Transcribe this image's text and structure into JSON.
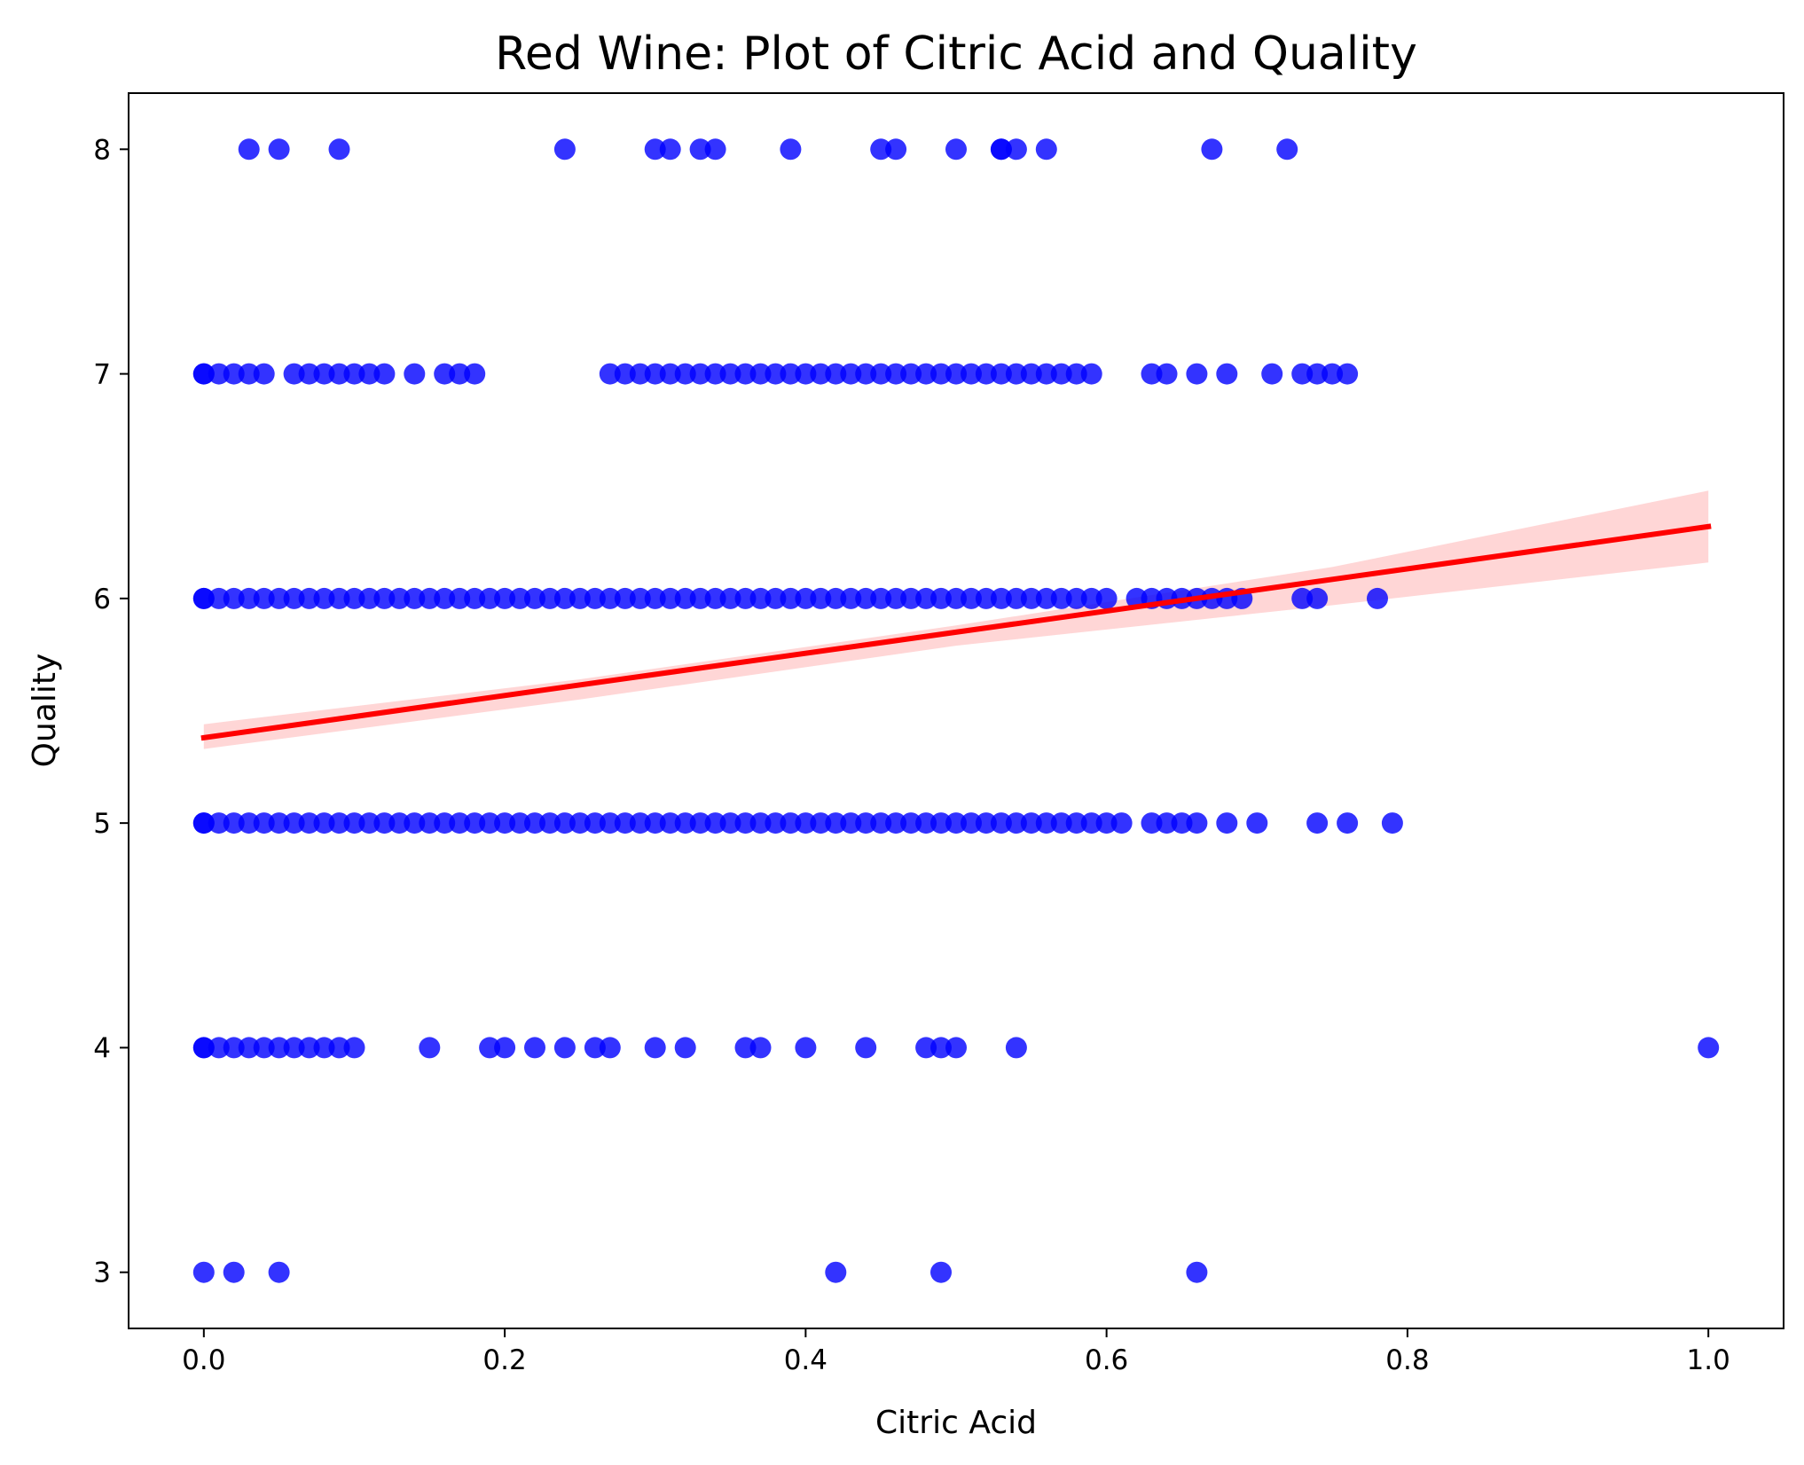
{
  "chart_data": {
    "type": "scatter",
    "title": "Red Wine: Plot of Citric Acid and Quality",
    "xlabel": "Citric Acid",
    "ylabel": "Quality",
    "xlim": [
      -0.05,
      1.05
    ],
    "ylim": [
      2.75,
      8.25
    ],
    "xticks": [
      "0.0",
      "0.2",
      "0.4",
      "0.6",
      "0.8",
      "1.0"
    ],
    "yticks": [
      "3",
      "4",
      "5",
      "6",
      "7",
      "8"
    ],
    "grid": false,
    "colors": {
      "points": "#0000ff",
      "regression_line": "#ff0000",
      "confidence_band": "#ffc8c8"
    },
    "regression": {
      "x": [
        0.0,
        1.0
      ],
      "y": [
        5.38,
        6.32
      ]
    },
    "confidence_band": {
      "x": [
        0.0,
        0.25,
        0.5,
        0.75,
        1.0
      ],
      "upper": [
        5.44,
        5.64,
        5.88,
        6.14,
        6.48
      ],
      "lower": [
        5.33,
        5.55,
        5.79,
        5.97,
        6.16
      ]
    },
    "series": [
      {
        "quality": 8,
        "x": [
          0.03,
          0.05,
          0.09,
          0.24,
          0.3,
          0.31,
          0.33,
          0.34,
          0.39,
          0.45,
          0.46,
          0.5,
          0.53,
          0.53,
          0.54,
          0.56,
          0.67,
          0.72
        ]
      },
      {
        "quality": 7,
        "x": [
          0.0,
          0.0,
          0.01,
          0.02,
          0.03,
          0.04,
          0.06,
          0.07,
          0.08,
          0.09,
          0.1,
          0.11,
          0.12,
          0.14,
          0.16,
          0.17,
          0.18,
          0.27,
          0.28,
          0.29,
          0.3,
          0.31,
          0.32,
          0.33,
          0.34,
          0.35,
          0.36,
          0.37,
          0.38,
          0.39,
          0.4,
          0.41,
          0.42,
          0.43,
          0.44,
          0.45,
          0.46,
          0.47,
          0.48,
          0.49,
          0.5,
          0.51,
          0.52,
          0.53,
          0.54,
          0.55,
          0.56,
          0.57,
          0.58,
          0.59,
          0.63,
          0.64,
          0.66,
          0.68,
          0.71,
          0.73,
          0.74,
          0.75,
          0.76
        ]
      },
      {
        "quality": 6,
        "x": [
          0.0,
          0.0,
          0.01,
          0.02,
          0.03,
          0.04,
          0.05,
          0.06,
          0.07,
          0.08,
          0.09,
          0.1,
          0.11,
          0.12,
          0.13,
          0.14,
          0.15,
          0.16,
          0.17,
          0.18,
          0.19,
          0.2,
          0.21,
          0.22,
          0.23,
          0.24,
          0.25,
          0.26,
          0.27,
          0.28,
          0.29,
          0.3,
          0.31,
          0.32,
          0.33,
          0.34,
          0.35,
          0.36,
          0.37,
          0.38,
          0.39,
          0.4,
          0.41,
          0.42,
          0.43,
          0.44,
          0.45,
          0.46,
          0.47,
          0.48,
          0.49,
          0.5,
          0.51,
          0.52,
          0.53,
          0.54,
          0.55,
          0.56,
          0.57,
          0.58,
          0.59,
          0.6,
          0.62,
          0.63,
          0.64,
          0.65,
          0.66,
          0.67,
          0.68,
          0.69,
          0.73,
          0.74,
          0.78
        ]
      },
      {
        "quality": 5,
        "x": [
          0.0,
          0.0,
          0.01,
          0.02,
          0.03,
          0.04,
          0.05,
          0.06,
          0.07,
          0.08,
          0.09,
          0.1,
          0.11,
          0.12,
          0.13,
          0.14,
          0.15,
          0.16,
          0.17,
          0.18,
          0.19,
          0.2,
          0.21,
          0.22,
          0.23,
          0.24,
          0.25,
          0.26,
          0.27,
          0.28,
          0.29,
          0.3,
          0.31,
          0.32,
          0.33,
          0.34,
          0.35,
          0.36,
          0.37,
          0.38,
          0.39,
          0.4,
          0.41,
          0.42,
          0.43,
          0.44,
          0.45,
          0.46,
          0.47,
          0.48,
          0.49,
          0.5,
          0.51,
          0.52,
          0.53,
          0.54,
          0.55,
          0.56,
          0.57,
          0.58,
          0.59,
          0.6,
          0.61,
          0.63,
          0.64,
          0.65,
          0.66,
          0.68,
          0.7,
          0.74,
          0.76,
          0.79
        ]
      },
      {
        "quality": 4,
        "x": [
          0.0,
          0.0,
          0.01,
          0.02,
          0.03,
          0.04,
          0.05,
          0.06,
          0.07,
          0.08,
          0.09,
          0.1,
          0.15,
          0.19,
          0.2,
          0.22,
          0.24,
          0.26,
          0.27,
          0.3,
          0.32,
          0.36,
          0.37,
          0.4,
          0.44,
          0.48,
          0.49,
          0.5,
          0.54,
          1.0
        ]
      },
      {
        "quality": 3,
        "x": [
          0.0,
          0.02,
          0.05,
          0.42,
          0.49,
          0.66
        ]
      }
    ]
  }
}
